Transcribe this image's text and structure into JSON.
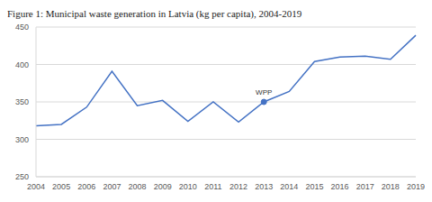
{
  "chart_data": {
    "type": "line",
    "title": "Figure 1: Municipal waste generation in Latvia (kg per capita), 2004-2019",
    "categories": [
      "2004",
      "2005",
      "2006",
      "2007",
      "2008",
      "2009",
      "2010",
      "2011",
      "2012",
      "2013",
      "2014",
      "2015",
      "2016",
      "2017",
      "2018",
      "2019"
    ],
    "values": [
      318,
      320,
      343,
      391,
      345,
      352,
      324,
      350,
      323,
      350,
      364,
      404,
      410,
      411,
      407,
      439
    ],
    "color": "#4472c4",
    "ylim": [
      250,
      450
    ],
    "yticks": [
      250,
      300,
      350,
      400,
      450
    ],
    "grid": true,
    "annotations": [
      {
        "label": "WPP",
        "x": "2013"
      }
    ]
  }
}
